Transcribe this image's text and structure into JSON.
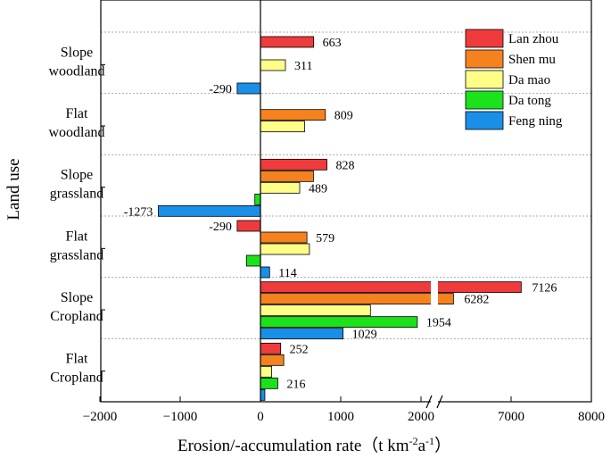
{
  "chart_data": {
    "type": "bar",
    "orientation": "horizontal",
    "xlabel_main": "Erosion/-accumulation rate（t km",
    "xlabel_sup1": "-2",
    "xlabel_mid": "a",
    "xlabel_sup2": "-1",
    "xlabel_end": "）",
    "ylabel": "Land use",
    "x_axis_break": {
      "lower_range": [
        -2000,
        2200
      ],
      "upper_range": [
        2200,
        8000
      ]
    },
    "xticks": [
      -2000,
      -1000,
      0,
      1000,
      2000,
      7000,
      8000
    ],
    "xtick_labels": [
      "−2000",
      "−1000",
      "0",
      "1000",
      "2000",
      "7000",
      "8000"
    ],
    "legend_position": "top-right",
    "categories": [
      {
        "line1": "Slope",
        "line2": "woodland"
      },
      {
        "line1": "Flat",
        "line2": "woodland"
      },
      {
        "line1": "Slope",
        "line2": "grassland"
      },
      {
        "line1": "Flat",
        "line2": "grassland"
      },
      {
        "line1": "Slope",
        "line2": "Cropland"
      },
      {
        "line1": "Flat",
        "line2": "Cropland"
      }
    ],
    "series": [
      {
        "name": "Lan zhou",
        "color": "#ef3b3b",
        "values": [
          663,
          null,
          828,
          -290,
          7126,
          252
        ]
      },
      {
        "name": "Shen mu",
        "color": "#f5821f",
        "values": [
          null,
          809,
          660,
          579,
          6282,
          290
        ]
      },
      {
        "name": "Da mao",
        "color": "#ffff88",
        "values": [
          311,
          550,
          489,
          610,
          1370,
          140
        ]
      },
      {
        "name": "Da tong",
        "color": "#1be21b",
        "values": [
          null,
          null,
          -70,
          -175,
          1954,
          216
        ]
      },
      {
        "name": "Feng ning",
        "color": "#1a8fe8",
        "values": [
          -290,
          null,
          -1273,
          114,
          1029,
          55
        ]
      }
    ],
    "data_labels": [
      {
        "category": 0,
        "series": 0,
        "text": "663"
      },
      {
        "category": 0,
        "series": 2,
        "text": "311"
      },
      {
        "category": 0,
        "series": 4,
        "text": "-290"
      },
      {
        "category": 1,
        "series": 1,
        "text": "809"
      },
      {
        "category": 2,
        "series": 0,
        "text": "828"
      },
      {
        "category": 2,
        "series": 2,
        "text": "489"
      },
      {
        "category": 2,
        "series": 4,
        "text": "-1273"
      },
      {
        "category": 3,
        "series": 0,
        "text": "-290"
      },
      {
        "category": 3,
        "series": 1,
        "text": "579"
      },
      {
        "category": 3,
        "series": 4,
        "text": "114"
      },
      {
        "category": 4,
        "series": 0,
        "text": "7126"
      },
      {
        "category": 4,
        "series": 1,
        "text": "6282"
      },
      {
        "category": 4,
        "series": 3,
        "text": "1954"
      },
      {
        "category": 4,
        "series": 4,
        "text": "1029"
      },
      {
        "category": 5,
        "series": 0,
        "text": "252"
      },
      {
        "category": 5,
        "series": 3,
        "text": "216"
      }
    ]
  }
}
